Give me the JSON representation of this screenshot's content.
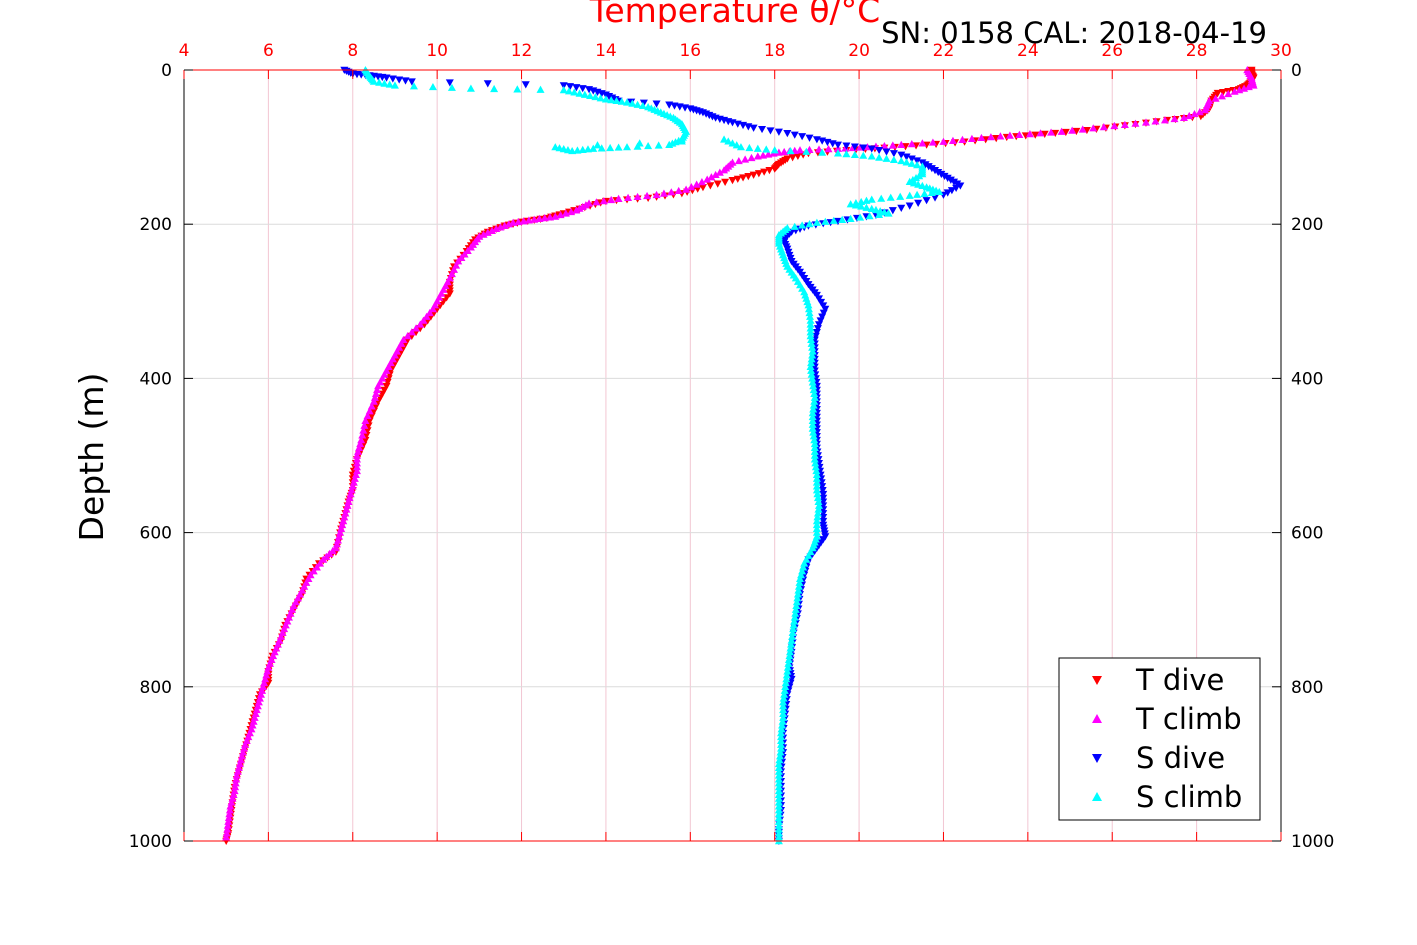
{
  "chart_data": {
    "type": "scatter",
    "xlabel": "Temperature θ/°C",
    "ylabel": "Depth (m)",
    "annotation": "SN: 0158  CAL: 2018-04-19",
    "xlim": [
      4,
      30
    ],
    "ylim": [
      0,
      1000
    ],
    "y_reversed": true,
    "x_ticks": [
      "4",
      "6",
      "8",
      "10",
      "12",
      "14",
      "16",
      "18",
      "20",
      "22",
      "24",
      "26",
      "28",
      "30"
    ],
    "y_ticks": [
      "0",
      "200",
      "400",
      "600",
      "800",
      "1000"
    ],
    "grid": true,
    "legend_position": "bottom-right",
    "colors": {
      "axis_top": "#ff0000",
      "grid_x": "#f2c6d2",
      "grid_y": "#dcdcdc"
    },
    "series": [
      {
        "name": "T dive",
        "marker": "triangle-down",
        "color": "#ff0000",
        "points": [
          [
            29.3,
            0
          ],
          [
            29.3,
            5
          ],
          [
            29.35,
            10
          ],
          [
            29.3,
            15
          ],
          [
            29.2,
            20
          ],
          [
            29.0,
            25
          ],
          [
            28.5,
            30
          ],
          [
            28.35,
            40
          ],
          [
            28.3,
            50
          ],
          [
            28.1,
            60
          ],
          [
            27.3,
            65
          ],
          [
            26.3,
            72
          ],
          [
            25.4,
            78
          ],
          [
            24.4,
            83
          ],
          [
            23.5,
            87
          ],
          [
            22.5,
            93
          ],
          [
            21.6,
            97
          ],
          [
            20.6,
            101
          ],
          [
            19.7,
            104
          ],
          [
            18.8,
            108
          ],
          [
            18.3,
            115
          ],
          [
            18.1,
            122
          ],
          [
            18.0,
            128
          ],
          [
            17.5,
            136
          ],
          [
            17.0,
            143
          ],
          [
            16.3,
            152
          ],
          [
            15.8,
            160
          ],
          [
            15.0,
            166
          ],
          [
            14.0,
            170
          ],
          [
            13.5,
            178
          ],
          [
            13.0,
            186
          ],
          [
            12.6,
            192
          ],
          [
            12.0,
            197
          ],
          [
            11.6,
            202
          ],
          [
            11.2,
            210
          ],
          [
            10.9,
            220
          ],
          [
            10.7,
            235
          ],
          [
            10.4,
            255
          ],
          [
            10.3,
            275
          ],
          [
            10.3,
            290
          ],
          [
            10.0,
            310
          ],
          [
            9.7,
            330
          ],
          [
            9.3,
            350
          ],
          [
            9.1,
            370
          ],
          [
            8.9,
            390
          ],
          [
            8.8,
            410
          ],
          [
            8.6,
            430
          ],
          [
            8.4,
            455
          ],
          [
            8.3,
            480
          ],
          [
            8.1,
            505
          ],
          [
            8.0,
            525
          ],
          [
            8.0,
            545
          ],
          [
            7.9,
            560
          ],
          [
            7.8,
            580
          ],
          [
            7.7,
            600
          ],
          [
            7.6,
            625
          ],
          [
            7.2,
            640
          ],
          [
            6.9,
            660
          ],
          [
            6.8,
            680
          ],
          [
            6.6,
            700
          ],
          [
            6.4,
            720
          ],
          [
            6.3,
            740
          ],
          [
            6.1,
            760
          ],
          [
            6.0,
            780
          ],
          [
            6.0,
            795
          ],
          [
            5.8,
            810
          ],
          [
            5.7,
            830
          ],
          [
            5.6,
            850
          ],
          [
            5.5,
            870
          ],
          [
            5.4,
            890
          ],
          [
            5.3,
            910
          ],
          [
            5.2,
            930
          ],
          [
            5.15,
            950
          ],
          [
            5.1,
            970
          ],
          [
            5.05,
            990
          ],
          [
            5.0,
            1000
          ]
        ]
      },
      {
        "name": "T climb",
        "marker": "triangle-up",
        "color": "#ff00ff",
        "points": [
          [
            29.2,
            0
          ],
          [
            29.3,
            10
          ],
          [
            29.35,
            20
          ],
          [
            28.9,
            28
          ],
          [
            28.3,
            40
          ],
          [
            28.2,
            52
          ],
          [
            27.7,
            62
          ],
          [
            26.8,
            68
          ],
          [
            25.8,
            74
          ],
          [
            24.8,
            80
          ],
          [
            23.8,
            84
          ],
          [
            22.9,
            88
          ],
          [
            22.0,
            93
          ],
          [
            21.0,
            97
          ],
          [
            20.2,
            100
          ],
          [
            19.5,
            102
          ],
          [
            18.6,
            104
          ],
          [
            18.1,
            107
          ],
          [
            17.6,
            112
          ],
          [
            17.0,
            120
          ],
          [
            16.8,
            130
          ],
          [
            16.4,
            142
          ],
          [
            15.9,
            155
          ],
          [
            15.2,
            162
          ],
          [
            14.3,
            167
          ],
          [
            13.6,
            173
          ],
          [
            13.3,
            182
          ],
          [
            12.8,
            190
          ],
          [
            12.3,
            194
          ],
          [
            11.8,
            198
          ],
          [
            11.4,
            206
          ],
          [
            11.0,
            216
          ],
          [
            10.8,
            230
          ],
          [
            10.5,
            248
          ],
          [
            10.3,
            270
          ],
          [
            10.1,
            290
          ],
          [
            9.9,
            310
          ],
          [
            9.6,
            330
          ],
          [
            9.2,
            350
          ],
          [
            9.0,
            370
          ],
          [
            8.8,
            390
          ],
          [
            8.6,
            410
          ],
          [
            8.5,
            430
          ],
          [
            8.3,
            455
          ],
          [
            8.2,
            480
          ],
          [
            8.1,
            500
          ],
          [
            8.1,
            520
          ],
          [
            8.0,
            540
          ],
          [
            7.9,
            560
          ],
          [
            7.8,
            580
          ],
          [
            7.7,
            600
          ],
          [
            7.6,
            620
          ],
          [
            7.3,
            635
          ],
          [
            7.0,
            655
          ],
          [
            6.8,
            675
          ],
          [
            6.6,
            695
          ],
          [
            6.45,
            715
          ],
          [
            6.3,
            735
          ],
          [
            6.15,
            755
          ],
          [
            6.0,
            775
          ],
          [
            5.9,
            795
          ],
          [
            5.8,
            815
          ],
          [
            5.7,
            835
          ],
          [
            5.6,
            855
          ],
          [
            5.45,
            875
          ],
          [
            5.35,
            895
          ],
          [
            5.25,
            915
          ],
          [
            5.2,
            935
          ],
          [
            5.1,
            955
          ],
          [
            5.05,
            975
          ],
          [
            5.0,
            995
          ]
        ]
      },
      {
        "name": "S dive",
        "marker": "triangle-down",
        "color": "#0000ff",
        "points": [
          [
            7.8,
            0
          ],
          [
            8.0,
            5
          ],
          [
            8.4,
            7
          ],
          [
            8.8,
            10
          ],
          [
            9.4,
            15
          ],
          [
            13.0,
            20
          ],
          [
            13.6,
            25
          ],
          [
            14.0,
            32
          ],
          [
            14.3,
            40
          ],
          [
            15.5,
            45
          ],
          [
            16.0,
            50
          ],
          [
            16.3,
            55
          ],
          [
            16.6,
            62
          ],
          [
            17.0,
            68
          ],
          [
            17.5,
            75
          ],
          [
            18.3,
            82
          ],
          [
            19.0,
            90
          ],
          [
            19.5,
            97
          ],
          [
            20.3,
            102
          ],
          [
            21.0,
            110
          ],
          [
            21.5,
            120
          ],
          [
            21.8,
            130
          ],
          [
            22.1,
            140
          ],
          [
            22.4,
            150
          ],
          [
            22.0,
            162
          ],
          [
            21.2,
            176
          ],
          [
            20.4,
            188
          ],
          [
            19.5,
            196
          ],
          [
            18.8,
            202
          ],
          [
            18.4,
            210
          ],
          [
            18.2,
            220
          ],
          [
            18.3,
            232
          ],
          [
            18.4,
            248
          ],
          [
            18.6,
            262
          ],
          [
            18.8,
            278
          ],
          [
            19.0,
            292
          ],
          [
            19.2,
            310
          ],
          [
            19.05,
            330
          ],
          [
            18.95,
            350
          ],
          [
            18.95,
            370
          ],
          [
            18.95,
            390
          ],
          [
            19.0,
            410
          ],
          [
            19.0,
            430
          ],
          [
            19.0,
            450
          ],
          [
            19.0,
            470
          ],
          [
            19.0,
            490
          ],
          [
            19.05,
            510
          ],
          [
            19.1,
            530
          ],
          [
            19.15,
            550
          ],
          [
            19.15,
            570
          ],
          [
            19.15,
            590
          ],
          [
            19.2,
            605
          ],
          [
            19.0,
            620
          ],
          [
            18.8,
            635
          ],
          [
            18.7,
            655
          ],
          [
            18.6,
            680
          ],
          [
            18.55,
            705
          ],
          [
            18.45,
            730
          ],
          [
            18.4,
            755
          ],
          [
            18.35,
            775
          ],
          [
            18.4,
            790
          ],
          [
            18.3,
            810
          ],
          [
            18.25,
            835
          ],
          [
            18.2,
            860
          ],
          [
            18.2,
            885
          ],
          [
            18.15,
            910
          ],
          [
            18.15,
            935
          ],
          [
            18.15,
            960
          ],
          [
            18.1,
            985
          ],
          [
            18.1,
            1000
          ]
        ]
      },
      {
        "name": "S climb",
        "marker": "triangle-up",
        "color": "#00ffff",
        "points": [
          [
            8.3,
            0
          ],
          [
            8.4,
            8
          ],
          [
            8.5,
            15
          ],
          [
            9.0,
            20
          ],
          [
            10.8,
            24
          ],
          [
            13.0,
            26
          ],
          [
            13.5,
            32
          ],
          [
            14.0,
            38
          ],
          [
            14.5,
            42
          ],
          [
            15.0,
            48
          ],
          [
            15.3,
            55
          ],
          [
            15.6,
            62
          ],
          [
            15.8,
            70
          ],
          [
            15.9,
            80
          ],
          [
            15.8,
            90
          ],
          [
            15.5,
            97
          ],
          [
            14.5,
            100
          ],
          [
            13.7,
            102
          ],
          [
            13.2,
            105
          ],
          [
            12.8,
            100
          ],
          [
            16.8,
            90
          ],
          [
            17.2,
            100
          ],
          [
            18.0,
            104
          ],
          [
            19.5,
            108
          ],
          [
            20.3,
            112
          ],
          [
            21.0,
            118
          ],
          [
            21.5,
            125
          ],
          [
            21.5,
            135
          ],
          [
            21.2,
            145
          ],
          [
            21.6,
            152
          ],
          [
            21.9,
            158
          ],
          [
            21.2,
            163
          ],
          [
            20.3,
            168
          ],
          [
            19.8,
            174
          ],
          [
            20.3,
            180
          ],
          [
            20.7,
            186
          ],
          [
            19.8,
            193
          ],
          [
            19.0,
            198
          ],
          [
            18.3,
            205
          ],
          [
            18.1,
            214
          ],
          [
            18.1,
            225
          ],
          [
            18.2,
            240
          ],
          [
            18.3,
            255
          ],
          [
            18.5,
            270
          ],
          [
            18.7,
            288
          ],
          [
            18.8,
            305
          ],
          [
            18.85,
            325
          ],
          [
            18.85,
            345
          ],
          [
            18.9,
            365
          ],
          [
            18.85,
            385
          ],
          [
            18.9,
            405
          ],
          [
            18.95,
            425
          ],
          [
            18.9,
            445
          ],
          [
            18.9,
            465
          ],
          [
            18.95,
            485
          ],
          [
            18.95,
            505
          ],
          [
            19.0,
            525
          ],
          [
            19.0,
            545
          ],
          [
            19.05,
            565
          ],
          [
            19.0,
            585
          ],
          [
            19.0,
            605
          ],
          [
            18.9,
            620
          ],
          [
            18.7,
            640
          ],
          [
            18.6,
            660
          ],
          [
            18.55,
            680
          ],
          [
            18.5,
            700
          ],
          [
            18.45,
            720
          ],
          [
            18.4,
            740
          ],
          [
            18.35,
            760
          ],
          [
            18.3,
            780
          ],
          [
            18.25,
            800
          ],
          [
            18.2,
            820
          ],
          [
            18.2,
            840
          ],
          [
            18.15,
            860
          ],
          [
            18.15,
            880
          ],
          [
            18.1,
            900
          ],
          [
            18.1,
            920
          ],
          [
            18.1,
            940
          ],
          [
            18.1,
            960
          ],
          [
            18.1,
            980
          ],
          [
            18.1,
            1000
          ]
        ]
      }
    ]
  }
}
